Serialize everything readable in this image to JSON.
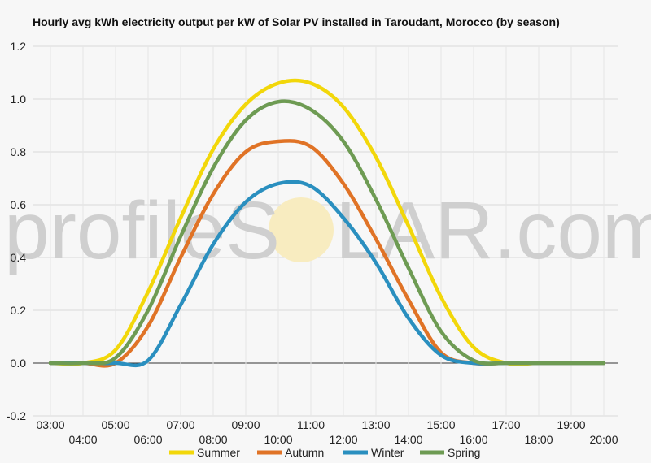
{
  "watermark": {
    "left": "profileS",
    "right": "LAR.com"
  },
  "chart_data": {
    "type": "line",
    "title": "Hourly avg kWh electricity output per kW of Solar PV installed in Taroudant, Morocco (by season)",
    "xlabel": "",
    "ylabel": "",
    "ylim": [
      -0.2,
      1.2
    ],
    "yticks": [
      -0.2,
      0.0,
      0.2,
      0.4,
      0.6,
      0.8,
      1.0,
      1.2
    ],
    "ytick_labels": [
      "-0.2",
      "0.0",
      "0.2",
      "0.4",
      "0.6",
      "0.8",
      "1.0",
      "1.2"
    ],
    "x": [
      "03:00",
      "04:00",
      "05:00",
      "06:00",
      "07:00",
      "08:00",
      "09:00",
      "10:00",
      "11:00",
      "12:00",
      "13:00",
      "14:00",
      "15:00",
      "16:00",
      "17:00",
      "18:00",
      "19:00",
      "20:00"
    ],
    "grid": true,
    "legend": "bottom",
    "series": [
      {
        "name": "Summer",
        "color": "#f2d70a",
        "values": [
          0.0,
          0.0,
          0.05,
          0.27,
          0.55,
          0.81,
          0.98,
          1.06,
          1.06,
          0.97,
          0.78,
          0.52,
          0.25,
          0.06,
          0.0,
          0.0,
          0.0,
          0.0
        ]
      },
      {
        "name": "Autumn",
        "color": "#e07326",
        "values": [
          0.0,
          0.0,
          0.0,
          0.14,
          0.4,
          0.64,
          0.8,
          0.84,
          0.82,
          0.68,
          0.47,
          0.24,
          0.04,
          0.0,
          0.0,
          0.0,
          0.0,
          0.0
        ]
      },
      {
        "name": "Winter",
        "color": "#2a8fbf",
        "values": [
          0.0,
          0.0,
          0.0,
          0.01,
          0.22,
          0.45,
          0.61,
          0.68,
          0.67,
          0.55,
          0.38,
          0.17,
          0.03,
          0.0,
          0.0,
          0.0,
          0.0,
          0.0
        ]
      },
      {
        "name": "Spring",
        "color": "#6e9b53",
        "values": [
          0.0,
          0.0,
          0.02,
          0.2,
          0.48,
          0.74,
          0.92,
          0.99,
          0.96,
          0.84,
          0.62,
          0.36,
          0.12,
          0.01,
          0.0,
          0.0,
          0.0,
          0.0
        ]
      }
    ]
  }
}
